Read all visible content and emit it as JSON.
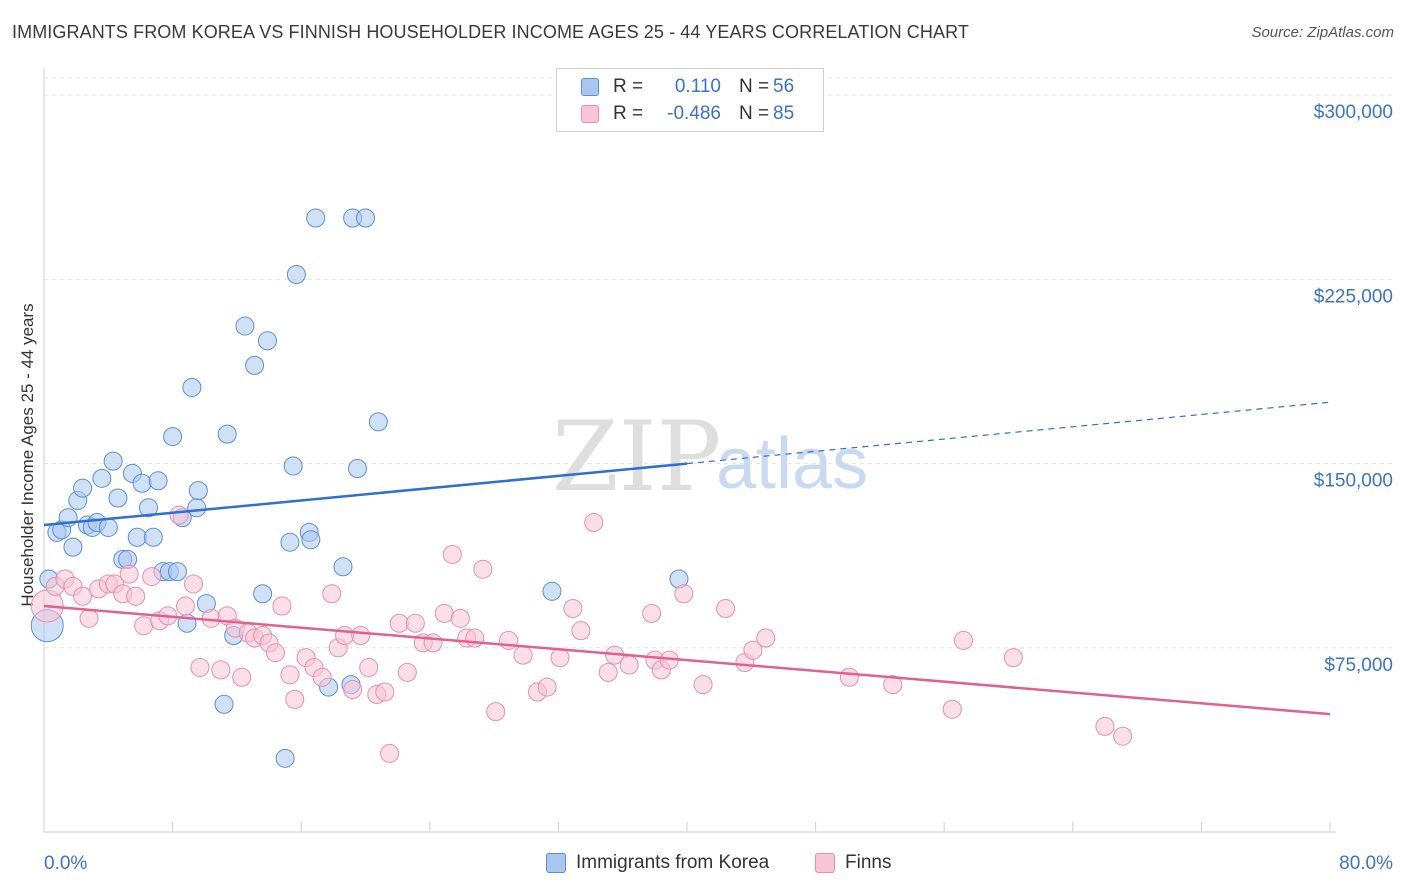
{
  "header": {
    "title": "IMMIGRANTS FROM KOREA VS FINNISH HOUSEHOLDER INCOME AGES 25 - 44 YEARS CORRELATION CHART",
    "source": "Source: ZipAtlas.com"
  },
  "watermark": {
    "zip": "ZIP",
    "atlas": "atlas"
  },
  "legend": {
    "rows": [
      {
        "r_label": "R =",
        "r_value": "0.110",
        "n_label": "N =",
        "n_value": "56",
        "color": "#aac8ef",
        "border": "#5b8fd6"
      },
      {
        "r_label": "R =",
        "r_value": "-0.486",
        "n_label": "N =",
        "n_value": "85",
        "color": "#f7c5d6",
        "border": "#e68fae"
      }
    ]
  },
  "bottom_legend": [
    {
      "label": "Immigrants from Korea",
      "color": "#aac8ef",
      "border": "#5b8fd6"
    },
    {
      "label": "Finns",
      "color": "#f7c5d6",
      "border": "#e68fae"
    }
  ],
  "chart_data": {
    "type": "scatter",
    "title": "IMMIGRANTS FROM KOREA VS FINNISH HOUSEHOLDER INCOME AGES 25 - 44 YEARS CORRELATION CHART",
    "xlabel": "",
    "ylabel": "Householder Income Ages 25 - 44 years",
    "xlim": [
      0,
      80
    ],
    "ylim": [
      0,
      300000
    ],
    "x_tick_labels": [
      "0.0%",
      "80.0%"
    ],
    "y_ticks": [
      75000,
      150000,
      225000,
      300000
    ],
    "y_tick_labels": [
      "$75,000",
      "$150,000",
      "$225,000",
      "$300,000"
    ],
    "grid": true,
    "legend_position": "top-center",
    "series": [
      {
        "name": "Immigrants from Korea",
        "color": "#aac8ef",
        "stroke": "#5b8fd6",
        "trend": {
          "x": [
            0,
            40
          ],
          "y": [
            125000,
            150000
          ],
          "dashed_to": [
            80,
            175000
          ],
          "color": "#2f6fd0"
        },
        "points": [
          [
            0.3,
            103000
          ],
          [
            0.8,
            122000
          ],
          [
            1.1,
            123000
          ],
          [
            1.5,
            128000
          ],
          [
            1.8,
            116000
          ],
          [
            2.1,
            135000
          ],
          [
            2.4,
            140000
          ],
          [
            2.7,
            125000
          ],
          [
            3.0,
            124000
          ],
          [
            3.3,
            126000
          ],
          [
            3.6,
            144000
          ],
          [
            4.0,
            124000
          ],
          [
            4.3,
            151000
          ],
          [
            4.6,
            136000
          ],
          [
            4.9,
            111000
          ],
          [
            5.2,
            111000
          ],
          [
            5.5,
            146000
          ],
          [
            5.8,
            120000
          ],
          [
            6.1,
            142000
          ],
          [
            6.5,
            132000
          ],
          [
            6.8,
            120000
          ],
          [
            7.1,
            143000
          ],
          [
            7.4,
            106000
          ],
          [
            7.8,
            106000
          ],
          [
            8.0,
            161000
          ],
          [
            8.3,
            106000
          ],
          [
            8.6,
            128000
          ],
          [
            8.9,
            85000
          ],
          [
            9.2,
            181000
          ],
          [
            9.5,
            132000
          ],
          [
            9.6,
            139000
          ],
          [
            10.1,
            93000
          ],
          [
            11.2,
            52000
          ],
          [
            11.4,
            162000
          ],
          [
            11.8,
            80000
          ],
          [
            12.5,
            206000
          ],
          [
            13.1,
            190000
          ],
          [
            13.6,
            97000
          ],
          [
            13.9,
            200000
          ],
          [
            15.0,
            30000
          ],
          [
            15.3,
            118000
          ],
          [
            15.5,
            149000
          ],
          [
            15.7,
            227000
          ],
          [
            16.5,
            122000
          ],
          [
            16.6,
            119000
          ],
          [
            16.9,
            250000
          ],
          [
            17.7,
            59000
          ],
          [
            18.6,
            108000
          ],
          [
            19.1,
            60000
          ],
          [
            19.2,
            250000
          ],
          [
            19.5,
            148000
          ],
          [
            20.0,
            250000
          ],
          [
            20.8,
            167000
          ],
          [
            31.6,
            98000
          ],
          [
            39.5,
            103000
          ],
          [
            0.2,
            84000
          ]
        ]
      },
      {
        "name": "Finns",
        "color": "#f7c5d6",
        "stroke": "#e68fae",
        "trend": {
          "x": [
            0,
            80
          ],
          "y": [
            92000,
            48000
          ],
          "color": "#e0608f"
        },
        "points": [
          [
            0.2,
            92000
          ],
          [
            0.7,
            100000
          ],
          [
            1.3,
            103000
          ],
          [
            1.8,
            100000
          ],
          [
            2.4,
            96000
          ],
          [
            2.8,
            87000
          ],
          [
            3.4,
            99000
          ],
          [
            4.0,
            101000
          ],
          [
            4.4,
            101000
          ],
          [
            4.9,
            97000
          ],
          [
            5.3,
            105000
          ],
          [
            5.7,
            96000
          ],
          [
            6.2,
            84000
          ],
          [
            6.7,
            104000
          ],
          [
            7.2,
            86000
          ],
          [
            7.7,
            88000
          ],
          [
            8.4,
            129000
          ],
          [
            8.8,
            92000
          ],
          [
            9.3,
            101000
          ],
          [
            9.7,
            67000
          ],
          [
            10.4,
            87000
          ],
          [
            11.0,
            66000
          ],
          [
            11.4,
            88000
          ],
          [
            11.9,
            83000
          ],
          [
            12.3,
            63000
          ],
          [
            12.7,
            81000
          ],
          [
            13.1,
            79000
          ],
          [
            13.6,
            80000
          ],
          [
            14.0,
            77000
          ],
          [
            14.4,
            73000
          ],
          [
            14.8,
            92000
          ],
          [
            15.3,
            64000
          ],
          [
            15.6,
            54000
          ],
          [
            16.3,
            71000
          ],
          [
            16.8,
            67000
          ],
          [
            17.3,
            63000
          ],
          [
            17.9,
            97000
          ],
          [
            18.3,
            75000
          ],
          [
            18.7,
            80000
          ],
          [
            19.2,
            58000
          ],
          [
            19.7,
            80000
          ],
          [
            20.2,
            67000
          ],
          [
            20.7,
            56000
          ],
          [
            21.2,
            57000
          ],
          [
            21.5,
            32000
          ],
          [
            22.1,
            85000
          ],
          [
            22.6,
            65000
          ],
          [
            23.1,
            85000
          ],
          [
            23.6,
            77000
          ],
          [
            24.2,
            77000
          ],
          [
            24.9,
            89000
          ],
          [
            25.4,
            113000
          ],
          [
            25.9,
            87000
          ],
          [
            26.3,
            79000
          ],
          [
            26.8,
            79000
          ],
          [
            27.3,
            107000
          ],
          [
            28.1,
            49000
          ],
          [
            28.9,
            78000
          ],
          [
            29.8,
            72000
          ],
          [
            30.7,
            57000
          ],
          [
            31.3,
            59000
          ],
          [
            32.1,
            71000
          ],
          [
            32.9,
            91000
          ],
          [
            33.4,
            82000
          ],
          [
            34.2,
            126000
          ],
          [
            35.1,
            65000
          ],
          [
            35.5,
            72000
          ],
          [
            36.4,
            68000
          ],
          [
            37.8,
            89000
          ],
          [
            38.0,
            70000
          ],
          [
            38.4,
            66000
          ],
          [
            38.9,
            70000
          ],
          [
            39.8,
            97000
          ],
          [
            41.0,
            60000
          ],
          [
            42.4,
            91000
          ],
          [
            43.6,
            69000
          ],
          [
            44.1,
            74000
          ],
          [
            44.9,
            79000
          ],
          [
            50.1,
            63000
          ],
          [
            52.8,
            60000
          ],
          [
            56.5,
            50000
          ],
          [
            57.2,
            78000
          ],
          [
            60.3,
            71000
          ],
          [
            66.0,
            43000
          ],
          [
            67.1,
            39000
          ]
        ]
      }
    ]
  }
}
